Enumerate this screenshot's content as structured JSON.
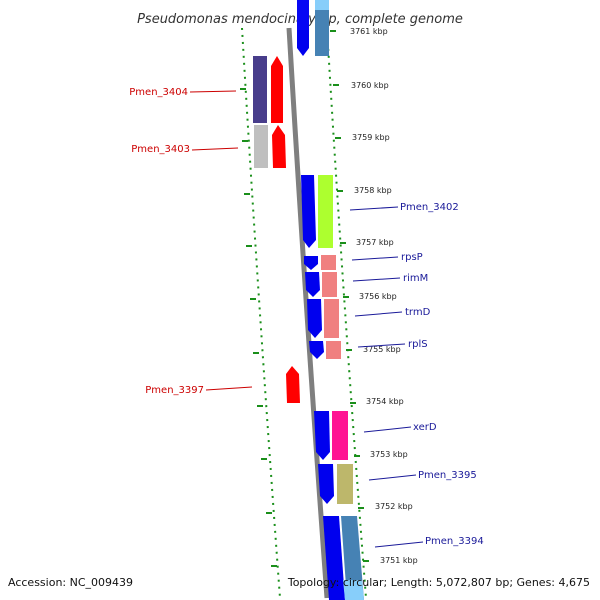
{
  "title": "Pseudomonas mendocina ymp, complete genome",
  "footer": {
    "accession": "Accession: NC_009439",
    "info": "Topology: circular; Length: 5,072,807 bp; Genes: 4,675"
  },
  "colors": {
    "backbone": "#7f7f7f",
    "tick_green": "#1a8f1a",
    "left_label": "#cc0000",
    "right_label": "#1a1a99",
    "cds_fwd": "#ff0000",
    "cds_rev": "#0000ee"
  },
  "scale_labels": [
    "3761 kbp",
    "3760 kbp",
    "3759 kbp",
    "3758 kbp",
    "3757 kbp",
    "3756 kbp",
    "3755 kbp",
    "3754 kbp",
    "3753 kbp",
    "3752 kbp",
    "3751 kbp"
  ],
  "left_genes": [
    {
      "name": "Pmen_3404"
    },
    {
      "name": "Pmen_3403"
    },
    {
      "name": "Pmen_3397"
    }
  ],
  "right_genes": [
    {
      "name": "Pmen_3402"
    },
    {
      "name": "rpsP"
    },
    {
      "name": "rimM"
    },
    {
      "name": "trmD"
    },
    {
      "name": "rplS"
    },
    {
      "name": "xerD"
    },
    {
      "name": "Pmen_3395"
    },
    {
      "name": "Pmen_3394"
    }
  ]
}
